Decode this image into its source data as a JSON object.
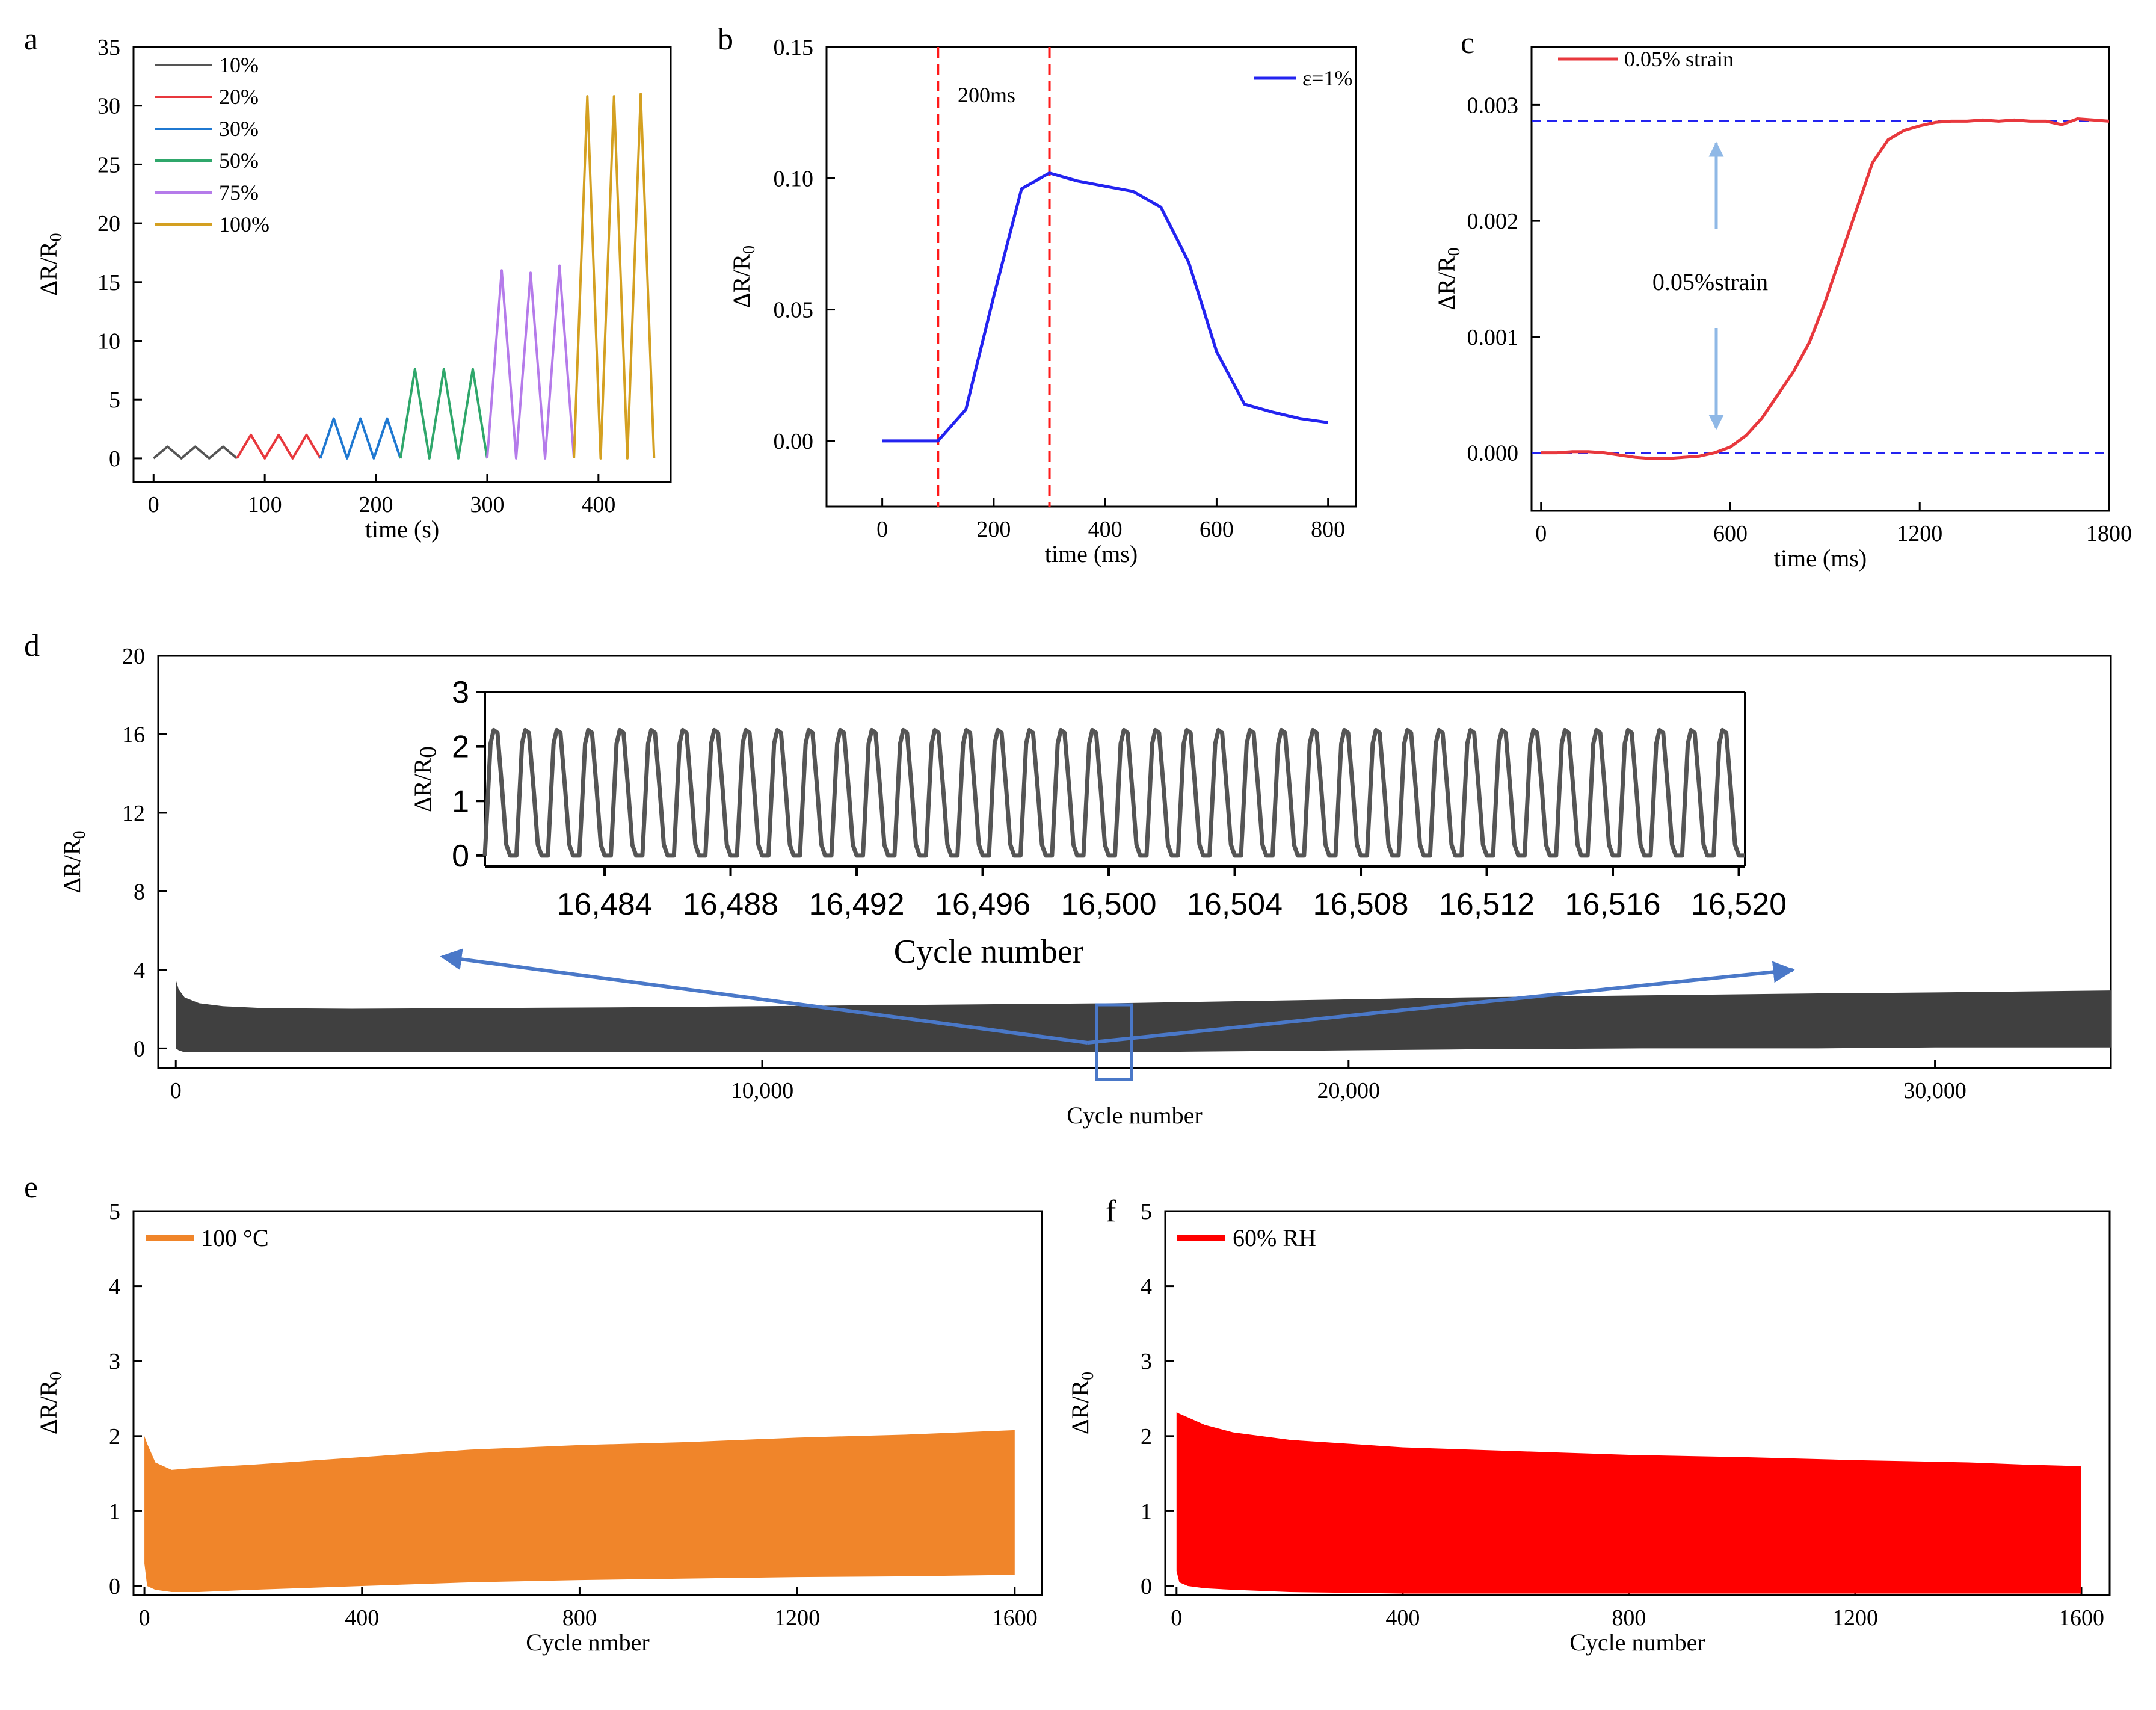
{
  "colors": {
    "gray": "#555555",
    "red": "#e8383d",
    "blue": "#1f78d1",
    "green": "#2fa76b",
    "purple": "#b57bea",
    "gold": "#d4a021",
    "pureBlue": "#2323f0",
    "orange": "#f0852a",
    "bright_red": "#ff0000",
    "arrow_blue": "#4a78c8",
    "dark_fill": "#404040"
  },
  "chart_data": [
    {
      "id": "a",
      "panel_label": "a",
      "type": "line",
      "xlabel": "time (s)",
      "ylabel": "ΔR/R0",
      "xlim": [
        -18,
        465
      ],
      "ylim": [
        -2,
        35
      ],
      "xticks": [
        0,
        100,
        200,
        300,
        400
      ],
      "yticks": [
        0,
        5,
        10,
        15,
        20,
        25,
        30,
        35
      ],
      "legend_position": "top-left",
      "series": [
        {
          "name": "10%",
          "color_key": "gray",
          "x": [
            0,
            12.5,
            25,
            37.5,
            50,
            62.5,
            75
          ],
          "y": [
            0,
            1,
            0,
            1,
            0,
            1,
            0
          ]
        },
        {
          "name": "20%",
          "color_key": "red",
          "x": [
            75,
            87.5,
            100,
            112.5,
            125,
            137.5,
            150
          ],
          "y": [
            0,
            2,
            0,
            2,
            0,
            2,
            0
          ]
        },
        {
          "name": "30%",
          "color_key": "blue",
          "x": [
            150,
            162,
            174,
            186,
            198,
            210,
            222
          ],
          "y": [
            0,
            3.4,
            0,
            3.4,
            0,
            3.4,
            0
          ]
        },
        {
          "name": "50%",
          "color_key": "green",
          "x": [
            222,
            235,
            248,
            261,
            274,
            287,
            300
          ],
          "y": [
            0,
            7.6,
            0,
            7.6,
            0,
            7.6,
            0
          ]
        },
        {
          "name": "75%",
          "color_key": "purple",
          "x": [
            300,
            313,
            326,
            339,
            352,
            365,
            378
          ],
          "y": [
            0,
            16,
            0,
            15.8,
            0,
            16.4,
            0
          ]
        },
        {
          "name": "100%",
          "color_key": "gold",
          "x": [
            378,
            390,
            402,
            414,
            426,
            438,
            450
          ],
          "y": [
            0,
            30.8,
            0,
            30.8,
            0,
            31,
            0
          ]
        }
      ]
    },
    {
      "id": "b",
      "panel_label": "b",
      "type": "line",
      "xlabel": "time (ms)",
      "ylabel": "ΔR/R0",
      "xlim": [
        -100,
        850
      ],
      "ylim": [
        -0.025,
        0.15
      ],
      "xticks": [
        0,
        200,
        400,
        600,
        800
      ],
      "yticks": [
        0.0,
        0.05,
        0.1,
        0.15
      ],
      "ytick_labels": [
        "0.00",
        "0.05",
        "0.10",
        "0.15"
      ],
      "legend_position": "top-right",
      "vlines": [
        100,
        300
      ],
      "annotation": "200ms",
      "series": [
        {
          "name": "ε=1%",
          "color_key": "pureBlue",
          "x": [
            0,
            100,
            150,
            200,
            250,
            300,
            350,
            400,
            450,
            500,
            550,
            600,
            650,
            700,
            750,
            800
          ],
          "y": [
            0,
            0,
            0.012,
            0.055,
            0.096,
            0.102,
            0.099,
            0.097,
            0.095,
            0.089,
            0.068,
            0.034,
            0.014,
            0.011,
            0.0085,
            0.007
          ]
        }
      ]
    },
    {
      "id": "c",
      "panel_label": "c",
      "type": "line",
      "xlabel": "time (ms)",
      "ylabel": "ΔR/R0",
      "xlim": [
        -30,
        1800
      ],
      "ylim": [
        -0.0005,
        0.0035
      ],
      "xticks": [
        0,
        600,
        1200,
        1800
      ],
      "yticks": [
        0.0,
        0.001,
        0.002,
        0.003
      ],
      "ytick_labels": [
        "0.000",
        "0.001",
        "0.002",
        "0.003"
      ],
      "legend_position": "top-left",
      "hlines": [
        0.0,
        0.00286
      ],
      "annotation": "0.05%strain",
      "series": [
        {
          "name": "0.05% strain",
          "color_key": "red",
          "x": [
            0,
            50,
            100,
            150,
            200,
            250,
            300,
            350,
            400,
            450,
            500,
            550,
            600,
            650,
            700,
            750,
            800,
            850,
            900,
            950,
            1000,
            1050,
            1100,
            1150,
            1200,
            1250,
            1300,
            1350,
            1400,
            1450,
            1500,
            1550,
            1600,
            1650,
            1700,
            1750,
            1800
          ],
          "y": [
            0,
            0,
            1e-05,
            1e-05,
            0,
            -2e-05,
            -4e-05,
            -5e-05,
            -5e-05,
            -4e-05,
            -3e-05,
            0,
            5e-05,
            0.00015,
            0.0003,
            0.0005,
            0.0007,
            0.00095,
            0.0013,
            0.0017,
            0.0021,
            0.0025,
            0.0027,
            0.00278,
            0.00282,
            0.00285,
            0.00286,
            0.00286,
            0.00287,
            0.00286,
            0.00287,
            0.00286,
            0.00286,
            0.00283,
            0.00288,
            0.00287,
            0.00286
          ]
        }
      ]
    },
    {
      "id": "d",
      "panel_label": "d",
      "type": "area",
      "xlabel": "Cycle number",
      "ylabel": "ΔR/R0",
      "xlim": [
        -300,
        33000
      ],
      "ylim": [
        -1,
        20
      ],
      "xticks": [
        0,
        10000,
        20000,
        30000
      ],
      "xtick_labels": [
        "0",
        "10,000",
        "20,000",
        "30,000"
      ],
      "yticks": [
        0,
        4,
        8,
        12,
        16,
        20
      ],
      "series": [
        {
          "name": "",
          "color_key": "dark_fill",
          "x": [
            0,
            50,
            150,
            400,
            800,
            1500,
            3000,
            5000,
            8000,
            10000,
            12000,
            14000,
            16000,
            18000,
            20000,
            22000,
            25000,
            28000,
            30000,
            33000
          ],
          "upper": [
            3.5,
            3.0,
            2.6,
            2.3,
            2.15,
            2.05,
            2.02,
            2.05,
            2.1,
            2.15,
            2.2,
            2.25,
            2.3,
            2.4,
            2.5,
            2.6,
            2.7,
            2.8,
            2.85,
            2.95
          ],
          "lower": [
            0,
            -0.1,
            -0.2,
            -0.2,
            -0.2,
            -0.2,
            -0.2,
            -0.2,
            -0.2,
            -0.2,
            -0.2,
            -0.2,
            -0.2,
            -0.15,
            -0.1,
            -0.05,
            0,
            0,
            0.05,
            0.05
          ]
        }
      ],
      "zoom_box_x": [
        15700,
        16300
      ],
      "inset": {
        "type": "line",
        "xlabel": "Cycle number",
        "ylabel": "ΔR/R0",
        "xlim": [
          16480.2,
          16520.2
        ],
        "ylim": [
          -0.2,
          3
        ],
        "xticks": [
          16484,
          16488,
          16492,
          16496,
          16500,
          16504,
          16508,
          16512,
          16516,
          16520
        ],
        "xtick_labels": [
          "16,484",
          "16,488",
          "16,492",
          "16,496",
          "16,500",
          "16,504",
          "16,508",
          "16,512",
          "16,516",
          "16,520"
        ],
        "yticks": [
          0,
          1,
          2,
          3
        ],
        "series": [
          {
            "name": "",
            "color_key": "gray",
            "cycle_start": 16480.2,
            "cycle_count": 40,
            "peak": 2.3,
            "base": 0.0
          }
        ]
      }
    },
    {
      "id": "e",
      "panel_label": "e",
      "type": "area",
      "xlabel": "Cycle nmber",
      "ylabel": "ΔR/R0",
      "xlim": [
        -20,
        1650
      ],
      "ylim": [
        -0.12,
        5
      ],
      "xticks": [
        0,
        400,
        800,
        1200,
        1600
      ],
      "yticks": [
        0,
        1,
        2,
        3,
        4,
        5
      ],
      "legend_position": "top-left",
      "series": [
        {
          "name": "100 °C",
          "color_key": "orange",
          "x": [
            0,
            5,
            20,
            50,
            100,
            200,
            400,
            600,
            800,
            1000,
            1200,
            1400,
            1500,
            1600
          ],
          "upper": [
            2.0,
            1.9,
            1.65,
            1.55,
            1.58,
            1.62,
            1.72,
            1.82,
            1.88,
            1.92,
            1.98,
            2.02,
            2.05,
            2.08
          ],
          "lower": [
            0.3,
            0.0,
            -0.05,
            -0.08,
            -0.08,
            -0.05,
            0.0,
            0.05,
            0.08,
            0.1,
            0.12,
            0.13,
            0.14,
            0.15
          ]
        }
      ]
    },
    {
      "id": "f",
      "panel_label": "f",
      "type": "area",
      "xlabel": "Cycle number",
      "ylabel": "ΔR/R0",
      "xlim": [
        -20,
        1650
      ],
      "ylim": [
        -0.12,
        5
      ],
      "xticks": [
        0,
        400,
        800,
        1200,
        1600
      ],
      "yticks": [
        0,
        1,
        2,
        3,
        4,
        5
      ],
      "legend_position": "top-left",
      "series": [
        {
          "name": "60% RH",
          "color_key": "bright_red",
          "x": [
            0,
            5,
            20,
            50,
            100,
            200,
            400,
            600,
            800,
            1000,
            1200,
            1400,
            1500,
            1600
          ],
          "upper": [
            2.32,
            2.3,
            2.25,
            2.15,
            2.05,
            1.95,
            1.85,
            1.8,
            1.75,
            1.72,
            1.68,
            1.65,
            1.62,
            1.6
          ],
          "lower": [
            0.2,
            0.05,
            0.0,
            -0.03,
            -0.05,
            -0.08,
            -0.1,
            -0.1,
            -0.1,
            -0.1,
            -0.1,
            -0.1,
            -0.1,
            -0.1
          ]
        }
      ]
    }
  ]
}
